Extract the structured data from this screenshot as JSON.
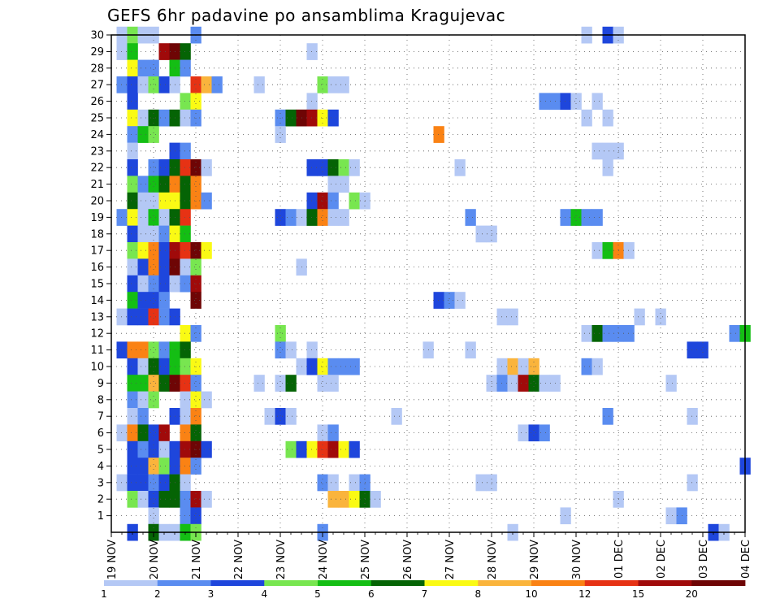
{
  "chart_data": {
    "type": "heatmap",
    "title": "GEFS 6hr padavine po ansamblima Kragujevac",
    "x_tick_labels": [
      "19 NOV",
      "20 NOV",
      "21 NOV",
      "22 NOV",
      "23 NOV",
      "24 NOV",
      "25 NOV",
      "26 NOV",
      "27 NOV",
      "28 NOV",
      "29 NOV",
      "30 NOV",
      "01 DEC",
      "02 DEC",
      "03 DEC",
      "04 DEC"
    ],
    "y_tick_labels": [
      "1",
      "2",
      "3",
      "4",
      "5",
      "6",
      "7",
      "8",
      "9",
      "10",
      "11",
      "12",
      "13",
      "14",
      "15",
      "16",
      "17",
      "18",
      "19",
      "20",
      "21",
      "22",
      "23",
      "24",
      "25",
      "26",
      "27",
      "28",
      "29",
      "30"
    ],
    "x_range_steps": [
      0,
      60
    ],
    "y_range_members": [
      0,
      30
    ],
    "grid": true,
    "colorbar": {
      "labels": [
        "1",
        "2",
        "3",
        "4",
        "5",
        "6",
        "7",
        "8",
        "10",
        "12",
        "15",
        "20"
      ],
      "colors": [
        "#b4c8f5",
        "#5a8cf0",
        "#1e46dc",
        "#78e650",
        "#14be14",
        "#056405",
        "#fafa14",
        "#fab43c",
        "#fa8214",
        "#e63214",
        "#a00a0a",
        "#6e0505"
      ]
    },
    "cells": [
      [
        1,
        30,
        1
      ],
      [
        2,
        30,
        4
      ],
      [
        3,
        30,
        1
      ],
      [
        4,
        30,
        1
      ],
      [
        8,
        30,
        2
      ],
      [
        45,
        30,
        1
      ],
      [
        47,
        30,
        3
      ],
      [
        48,
        30,
        1
      ],
      [
        1,
        29,
        1
      ],
      [
        2,
        29,
        5
      ],
      [
        5,
        29,
        11
      ],
      [
        6,
        29,
        12
      ],
      [
        7,
        29,
        6
      ],
      [
        19,
        29,
        1
      ],
      [
        2,
        28,
        7
      ],
      [
        3,
        28,
        2
      ],
      [
        4,
        28,
        2
      ],
      [
        6,
        28,
        5
      ],
      [
        7,
        28,
        2
      ],
      [
        1,
        27,
        2
      ],
      [
        2,
        27,
        3
      ],
      [
        3,
        27,
        1
      ],
      [
        4,
        27,
        4
      ],
      [
        5,
        27,
        3
      ],
      [
        6,
        27,
        1
      ],
      [
        8,
        27,
        10
      ],
      [
        9,
        27,
        8
      ],
      [
        10,
        27,
        2
      ],
      [
        14,
        27,
        1
      ],
      [
        20,
        27,
        4
      ],
      [
        21,
        27,
        1
      ],
      [
        22,
        27,
        1
      ],
      [
        2,
        26,
        3
      ],
      [
        7,
        26,
        4
      ],
      [
        8,
        26,
        7
      ],
      [
        19,
        26,
        1
      ],
      [
        41,
        26,
        2
      ],
      [
        42,
        26,
        2
      ],
      [
        43,
        26,
        3
      ],
      [
        44,
        26,
        1
      ],
      [
        46,
        26,
        1
      ],
      [
        2,
        25,
        7
      ],
      [
        3,
        25,
        1
      ],
      [
        4,
        25,
        6
      ],
      [
        5,
        25,
        2
      ],
      [
        6,
        25,
        6
      ],
      [
        7,
        25,
        1
      ],
      [
        8,
        25,
        2
      ],
      [
        16,
        25,
        2
      ],
      [
        17,
        25,
        6
      ],
      [
        18,
        25,
        12
      ],
      [
        19,
        25,
        11
      ],
      [
        20,
        25,
        7
      ],
      [
        21,
        25,
        3
      ],
      [
        45,
        25,
        1
      ],
      [
        47,
        25,
        1
      ],
      [
        2,
        24,
        2
      ],
      [
        3,
        24,
        5
      ],
      [
        4,
        24,
        4
      ],
      [
        16,
        24,
        1
      ],
      [
        31,
        24,
        9
      ],
      [
        2,
        23,
        1
      ],
      [
        6,
        23,
        3
      ],
      [
        7,
        23,
        2
      ],
      [
        46,
        23,
        1
      ],
      [
        47,
        23,
        1
      ],
      [
        48,
        23,
        1
      ],
      [
        2,
        22,
        3
      ],
      [
        4,
        22,
        2
      ],
      [
        5,
        22,
        3
      ],
      [
        6,
        22,
        6
      ],
      [
        7,
        22,
        10
      ],
      [
        8,
        22,
        12
      ],
      [
        9,
        22,
        1
      ],
      [
        19,
        22,
        3
      ],
      [
        20,
        22,
        3
      ],
      [
        21,
        22,
        6
      ],
      [
        22,
        22,
        4
      ],
      [
        23,
        22,
        1
      ],
      [
        33,
        22,
        1
      ],
      [
        47,
        22,
        1
      ],
      [
        2,
        21,
        4
      ],
      [
        3,
        21,
        2
      ],
      [
        4,
        21,
        5
      ],
      [
        5,
        21,
        6
      ],
      [
        6,
        21,
        9
      ],
      [
        7,
        21,
        6
      ],
      [
        8,
        21,
        9
      ],
      [
        21,
        21,
        1
      ],
      [
        22,
        21,
        1
      ],
      [
        2,
        20,
        6
      ],
      [
        3,
        20,
        1
      ],
      [
        4,
        20,
        1
      ],
      [
        5,
        20,
        7
      ],
      [
        6,
        20,
        7
      ],
      [
        7,
        20,
        6
      ],
      [
        8,
        20,
        9
      ],
      [
        9,
        20,
        2
      ],
      [
        19,
        20,
        3
      ],
      [
        20,
        20,
        11
      ],
      [
        21,
        20,
        2
      ],
      [
        23,
        20,
        4
      ],
      [
        24,
        20,
        1
      ],
      [
        1,
        19,
        2
      ],
      [
        2,
        19,
        7
      ],
      [
        3,
        19,
        1
      ],
      [
        4,
        19,
        5
      ],
      [
        5,
        19,
        1
      ],
      [
        6,
        19,
        6
      ],
      [
        7,
        19,
        10
      ],
      [
        16,
        19,
        3
      ],
      [
        17,
        19,
        2
      ],
      [
        18,
        19,
        1
      ],
      [
        19,
        19,
        6
      ],
      [
        20,
        19,
        9
      ],
      [
        21,
        19,
        1
      ],
      [
        22,
        19,
        1
      ],
      [
        34,
        19,
        2
      ],
      [
        43,
        19,
        2
      ],
      [
        44,
        19,
        5
      ],
      [
        45,
        19,
        2
      ],
      [
        46,
        19,
        2
      ],
      [
        2,
        18,
        3
      ],
      [
        3,
        18,
        1
      ],
      [
        4,
        18,
        1
      ],
      [
        5,
        18,
        2
      ],
      [
        6,
        18,
        7
      ],
      [
        7,
        18,
        5
      ],
      [
        35,
        18,
        1
      ],
      [
        36,
        18,
        1
      ],
      [
        2,
        17,
        4
      ],
      [
        3,
        17,
        7
      ],
      [
        4,
        17,
        9
      ],
      [
        5,
        17,
        3
      ],
      [
        6,
        17,
        11
      ],
      [
        7,
        17,
        10
      ],
      [
        8,
        17,
        12
      ],
      [
        9,
        17,
        7
      ],
      [
        46,
        17,
        1
      ],
      [
        47,
        17,
        5
      ],
      [
        48,
        17,
        9
      ],
      [
        49,
        17,
        1
      ],
      [
        2,
        16,
        1
      ],
      [
        3,
        16,
        3
      ],
      [
        4,
        16,
        9
      ],
      [
        5,
        16,
        3
      ],
      [
        6,
        16,
        12
      ],
      [
        7,
        16,
        1
      ],
      [
        8,
        16,
        4
      ],
      [
        18,
        16,
        1
      ],
      [
        2,
        15,
        3
      ],
      [
        3,
        15,
        1
      ],
      [
        4,
        15,
        2
      ],
      [
        5,
        15,
        3
      ],
      [
        6,
        15,
        1
      ],
      [
        7,
        15,
        2
      ],
      [
        8,
        15,
        11
      ],
      [
        2,
        14,
        5
      ],
      [
        3,
        14,
        3
      ],
      [
        4,
        14,
        3
      ],
      [
        5,
        14,
        2
      ],
      [
        8,
        14,
        12
      ],
      [
        31,
        14,
        3
      ],
      [
        32,
        14,
        2
      ],
      [
        33,
        14,
        1
      ],
      [
        1,
        13,
        1
      ],
      [
        2,
        13,
        3
      ],
      [
        3,
        13,
        3
      ],
      [
        4,
        13,
        10
      ],
      [
        5,
        13,
        2
      ],
      [
        6,
        13,
        3
      ],
      [
        37,
        13,
        1
      ],
      [
        38,
        13,
        1
      ],
      [
        50,
        13,
        1
      ],
      [
        52,
        13,
        1
      ],
      [
        7,
        12,
        7
      ],
      [
        8,
        12,
        2
      ],
      [
        16,
        12,
        4
      ],
      [
        45,
        12,
        1
      ],
      [
        46,
        12,
        6
      ],
      [
        47,
        12,
        2
      ],
      [
        48,
        12,
        2
      ],
      [
        49,
        12,
        2
      ],
      [
        59,
        12,
        2
      ],
      [
        60,
        12,
        5
      ],
      [
        1,
        11,
        3
      ],
      [
        2,
        11,
        9
      ],
      [
        3,
        11,
        9
      ],
      [
        4,
        11,
        4
      ],
      [
        5,
        11,
        2
      ],
      [
        6,
        11,
        5
      ],
      [
        7,
        11,
        6
      ],
      [
        16,
        11,
        2
      ],
      [
        17,
        11,
        1
      ],
      [
        19,
        11,
        1
      ],
      [
        30,
        11,
        1
      ],
      [
        34,
        11,
        1
      ],
      [
        55,
        11,
        3
      ],
      [
        56,
        11,
        3
      ],
      [
        2,
        10,
        3
      ],
      [
        3,
        10,
        1
      ],
      [
        4,
        10,
        6
      ],
      [
        5,
        10,
        3
      ],
      [
        6,
        10,
        5
      ],
      [
        7,
        10,
        4
      ],
      [
        8,
        10,
        7
      ],
      [
        18,
        10,
        1
      ],
      [
        19,
        10,
        3
      ],
      [
        20,
        10,
        7
      ],
      [
        21,
        10,
        2
      ],
      [
        22,
        10,
        2
      ],
      [
        23,
        10,
        2
      ],
      [
        37,
        10,
        1
      ],
      [
        38,
        10,
        8
      ],
      [
        39,
        10,
        1
      ],
      [
        40,
        10,
        8
      ],
      [
        45,
        10,
        2
      ],
      [
        46,
        10,
        1
      ],
      [
        2,
        9,
        5
      ],
      [
        3,
        9,
        5
      ],
      [
        4,
        9,
        8
      ],
      [
        5,
        9,
        6
      ],
      [
        6,
        9,
        12
      ],
      [
        7,
        9,
        10
      ],
      [
        8,
        9,
        2
      ],
      [
        14,
        9,
        1
      ],
      [
        16,
        9,
        1
      ],
      [
        17,
        9,
        6
      ],
      [
        20,
        9,
        1
      ],
      [
        21,
        9,
        1
      ],
      [
        36,
        9,
        1
      ],
      [
        37,
        9,
        2
      ],
      [
        38,
        9,
        1
      ],
      [
        39,
        9,
        11
      ],
      [
        40,
        9,
        6
      ],
      [
        41,
        9,
        1
      ],
      [
        42,
        9,
        1
      ],
      [
        53,
        9,
        1
      ],
      [
        2,
        8,
        2
      ],
      [
        3,
        8,
        1
      ],
      [
        4,
        8,
        4
      ],
      [
        7,
        8,
        1
      ],
      [
        8,
        8,
        7
      ],
      [
        9,
        8,
        1
      ],
      [
        2,
        7,
        1
      ],
      [
        3,
        7,
        2
      ],
      [
        6,
        7,
        3
      ],
      [
        7,
        7,
        1
      ],
      [
        8,
        7,
        9
      ],
      [
        15,
        7,
        1
      ],
      [
        16,
        7,
        3
      ],
      [
        17,
        7,
        1
      ],
      [
        27,
        7,
        1
      ],
      [
        47,
        7,
        2
      ],
      [
        55,
        7,
        1
      ],
      [
        1,
        6,
        1
      ],
      [
        2,
        6,
        9
      ],
      [
        3,
        6,
        6
      ],
      [
        4,
        6,
        3
      ],
      [
        5,
        6,
        11
      ],
      [
        7,
        6,
        9
      ],
      [
        8,
        6,
        6
      ],
      [
        20,
        6,
        1
      ],
      [
        21,
        6,
        2
      ],
      [
        39,
        6,
        1
      ],
      [
        40,
        6,
        3
      ],
      [
        41,
        6,
        2
      ],
      [
        2,
        5,
        3
      ],
      [
        3,
        5,
        2
      ],
      [
        4,
        5,
        3
      ],
      [
        5,
        5,
        1
      ],
      [
        6,
        5,
        3
      ],
      [
        7,
        5,
        11
      ],
      [
        8,
        5,
        12
      ],
      [
        9,
        5,
        3
      ],
      [
        17,
        5,
        4
      ],
      [
        18,
        5,
        3
      ],
      [
        19,
        5,
        7
      ],
      [
        20,
        5,
        10
      ],
      [
        21,
        5,
        11
      ],
      [
        22,
        5,
        7
      ],
      [
        23,
        5,
        3
      ],
      [
        2,
        4,
        3
      ],
      [
        3,
        4,
        3
      ],
      [
        4,
        4,
        8
      ],
      [
        5,
        4,
        4
      ],
      [
        6,
        4,
        3
      ],
      [
        7,
        4,
        9
      ],
      [
        8,
        4,
        2
      ],
      [
        60,
        4,
        3
      ],
      [
        1,
        3,
        1
      ],
      [
        2,
        3,
        3
      ],
      [
        3,
        3,
        3
      ],
      [
        4,
        3,
        2
      ],
      [
        5,
        3,
        3
      ],
      [
        6,
        3,
        6
      ],
      [
        7,
        3,
        1
      ],
      [
        20,
        3,
        2
      ],
      [
        21,
        3,
        1
      ],
      [
        23,
        3,
        1
      ],
      [
        24,
        3,
        2
      ],
      [
        35,
        3,
        1
      ],
      [
        36,
        3,
        1
      ],
      [
        55,
        3,
        1
      ],
      [
        2,
        2,
        4
      ],
      [
        3,
        2,
        1
      ],
      [
        4,
        2,
        3
      ],
      [
        5,
        2,
        6
      ],
      [
        6,
        2,
        6
      ],
      [
        7,
        2,
        2
      ],
      [
        8,
        2,
        11
      ],
      [
        9,
        2,
        1
      ],
      [
        21,
        2,
        8
      ],
      [
        22,
        2,
        8
      ],
      [
        23,
        2,
        7
      ],
      [
        24,
        2,
        6
      ],
      [
        25,
        2,
        1
      ],
      [
        48,
        2,
        1
      ],
      [
        4,
        1,
        1
      ],
      [
        7,
        1,
        2
      ],
      [
        8,
        1,
        3
      ],
      [
        43,
        1,
        1
      ],
      [
        53,
        1,
        1
      ],
      [
        54,
        1,
        2
      ],
      [
        2,
        0,
        3
      ],
      [
        4,
        0,
        6
      ],
      [
        5,
        0,
        1
      ],
      [
        6,
        0,
        1
      ],
      [
        7,
        0,
        5
      ],
      [
        8,
        0,
        4
      ],
      [
        20,
        0,
        2
      ],
      [
        38,
        0,
        1
      ],
      [
        57,
        0,
        3
      ],
      [
        58,
        0,
        1
      ]
    ]
  }
}
